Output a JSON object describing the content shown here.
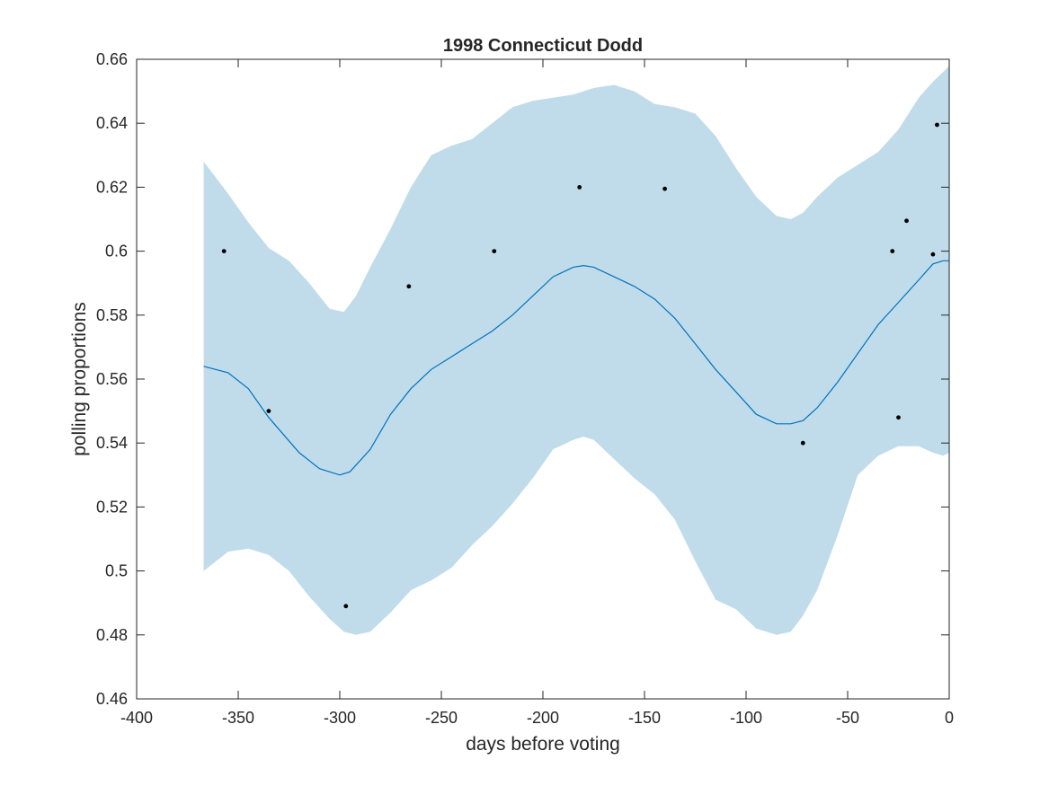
{
  "chart_data": {
    "type": "line",
    "title": "1998 Connecticut Dodd",
    "xlabel": "days before voting",
    "ylabel": "polling proportions",
    "xlim": [
      -400,
      0
    ],
    "ylim": [
      0.46,
      0.66
    ],
    "xticks": [
      -400,
      -350,
      -300,
      -250,
      -200,
      -150,
      -100,
      -50,
      0
    ],
    "yticks": [
      0.46,
      0.48,
      0.5,
      0.52,
      0.54,
      0.56,
      0.58,
      0.6,
      0.62,
      0.64,
      0.66
    ],
    "grid": false,
    "colors": {
      "band": "#c0dcea",
      "line": "#0072bd",
      "points": "#000000",
      "axis": "#262626"
    },
    "mean_line": {
      "x": [
        -367,
        -355,
        -345,
        -335,
        -320,
        -310,
        -300,
        -295,
        -285,
        -275,
        -265,
        -255,
        -245,
        -235,
        -225,
        -215,
        -205,
        -195,
        -185,
        -180,
        -175,
        -165,
        -155,
        -145,
        -135,
        -125,
        -115,
        -105,
        -95,
        -85,
        -78,
        -72,
        -65,
        -55,
        -45,
        -35,
        -25,
        -15,
        -8,
        -3,
        0
      ],
      "y": [
        0.564,
        0.562,
        0.557,
        0.548,
        0.537,
        0.532,
        0.53,
        0.531,
        0.538,
        0.549,
        0.557,
        0.563,
        0.567,
        0.571,
        0.575,
        0.58,
        0.586,
        0.592,
        0.595,
        0.5955,
        0.595,
        0.592,
        0.589,
        0.585,
        0.579,
        0.571,
        0.563,
        0.556,
        0.549,
        0.546,
        0.546,
        0.547,
        0.551,
        0.559,
        0.568,
        0.577,
        0.584,
        0.591,
        0.596,
        0.597,
        0.597
      ]
    },
    "band_upper": {
      "x": [
        -367,
        -355,
        -345,
        -335,
        -325,
        -315,
        -305,
        -298,
        -292,
        -285,
        -275,
        -265,
        -255,
        -245,
        -235,
        -225,
        -215,
        -205,
        -195,
        -185,
        -175,
        -165,
        -155,
        -145,
        -135,
        -125,
        -115,
        -105,
        -95,
        -85,
        -78,
        -72,
        -65,
        -55,
        -45,
        -35,
        -25,
        -15,
        -8,
        -3,
        0
      ],
      "y": [
        0.628,
        0.618,
        0.609,
        0.601,
        0.597,
        0.59,
        0.582,
        0.581,
        0.586,
        0.595,
        0.607,
        0.62,
        0.63,
        0.633,
        0.635,
        0.64,
        0.645,
        0.647,
        0.648,
        0.649,
        0.651,
        0.652,
        0.65,
        0.646,
        0.645,
        0.643,
        0.636,
        0.626,
        0.617,
        0.611,
        0.61,
        0.612,
        0.617,
        0.623,
        0.627,
        0.631,
        0.638,
        0.648,
        0.653,
        0.656,
        0.658
      ]
    },
    "band_lower": {
      "x": [
        -367,
        -355,
        -345,
        -335,
        -325,
        -315,
        -305,
        -298,
        -292,
        -285,
        -275,
        -265,
        -255,
        -245,
        -235,
        -225,
        -215,
        -205,
        -195,
        -185,
        -180,
        -175,
        -165,
        -155,
        -145,
        -135,
        -125,
        -115,
        -105,
        -95,
        -85,
        -78,
        -72,
        -65,
        -55,
        -45,
        -35,
        -25,
        -15,
        -8,
        -3,
        0
      ],
      "y": [
        0.5,
        0.506,
        0.507,
        0.505,
        0.5,
        0.492,
        0.485,
        0.481,
        0.48,
        0.481,
        0.487,
        0.494,
        0.497,
        0.501,
        0.508,
        0.514,
        0.521,
        0.529,
        0.538,
        0.541,
        0.542,
        0.541,
        0.535,
        0.529,
        0.524,
        0.516,
        0.503,
        0.491,
        0.488,
        0.482,
        0.48,
        0.481,
        0.486,
        0.494,
        0.511,
        0.53,
        0.536,
        0.539,
        0.539,
        0.537,
        0.536,
        0.537
      ]
    },
    "points": [
      {
        "x": -357,
        "y": 0.6
      },
      {
        "x": -335,
        "y": 0.55
      },
      {
        "x": -297,
        "y": 0.489
      },
      {
        "x": -266,
        "y": 0.589
      },
      {
        "x": -224,
        "y": 0.6
      },
      {
        "x": -182,
        "y": 0.62
      },
      {
        "x": -140,
        "y": 0.6195
      },
      {
        "x": -72,
        "y": 0.54
      },
      {
        "x": -28,
        "y": 0.6
      },
      {
        "x": -25,
        "y": 0.548
      },
      {
        "x": -21,
        "y": 0.6095
      },
      {
        "x": -8,
        "y": 0.599
      },
      {
        "x": -6,
        "y": 0.6395
      }
    ]
  }
}
